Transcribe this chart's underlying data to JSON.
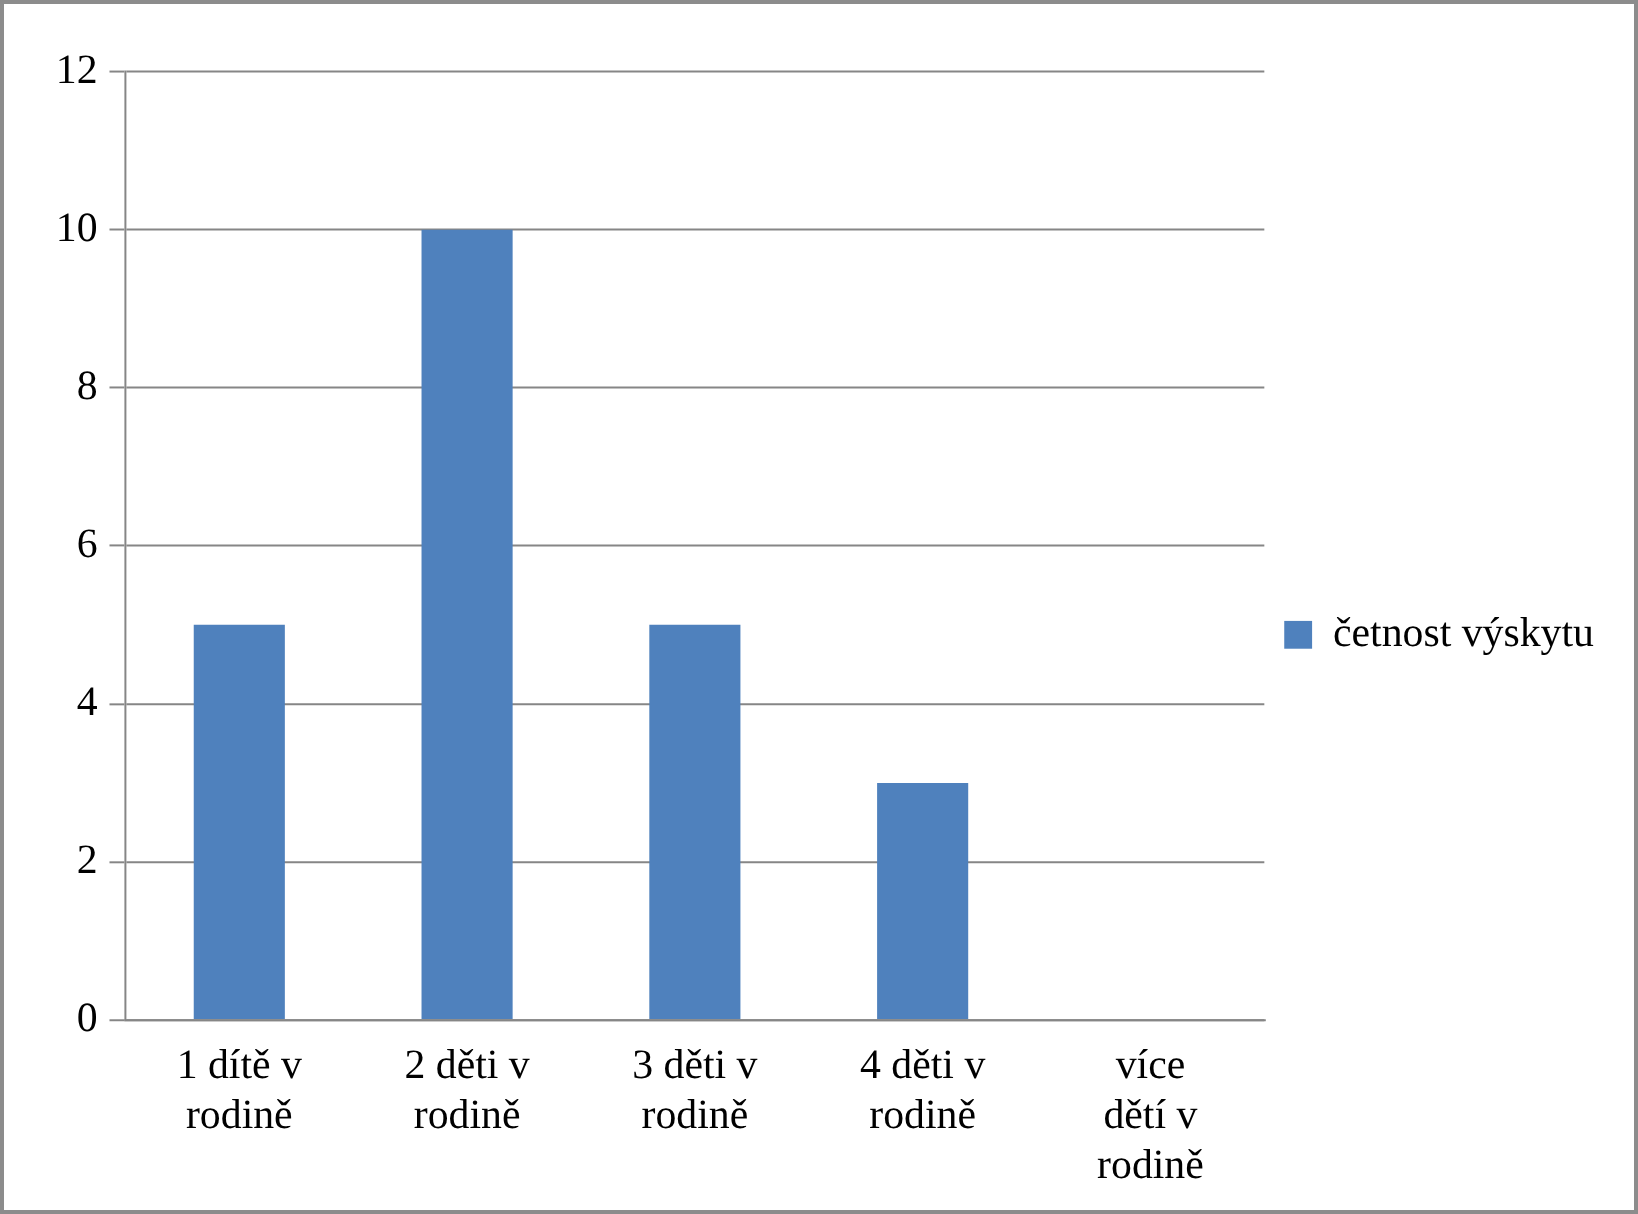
{
  "chart_data": {
    "type": "bar",
    "categories": [
      "1 dítě v rodině",
      "2 děti v rodině",
      "3 děti v rodině",
      "4 děti v rodině",
      "více dětí v rodině"
    ],
    "series": [
      {
        "name": "četnost výskytu",
        "color": "#4f81bd",
        "values": [
          5,
          10,
          5,
          3,
          0
        ]
      }
    ],
    "ylim": [
      0,
      12
    ],
    "yticks": [
      0,
      2,
      4,
      6,
      8,
      10,
      12
    ],
    "grid": "y",
    "legend": "right"
  }
}
